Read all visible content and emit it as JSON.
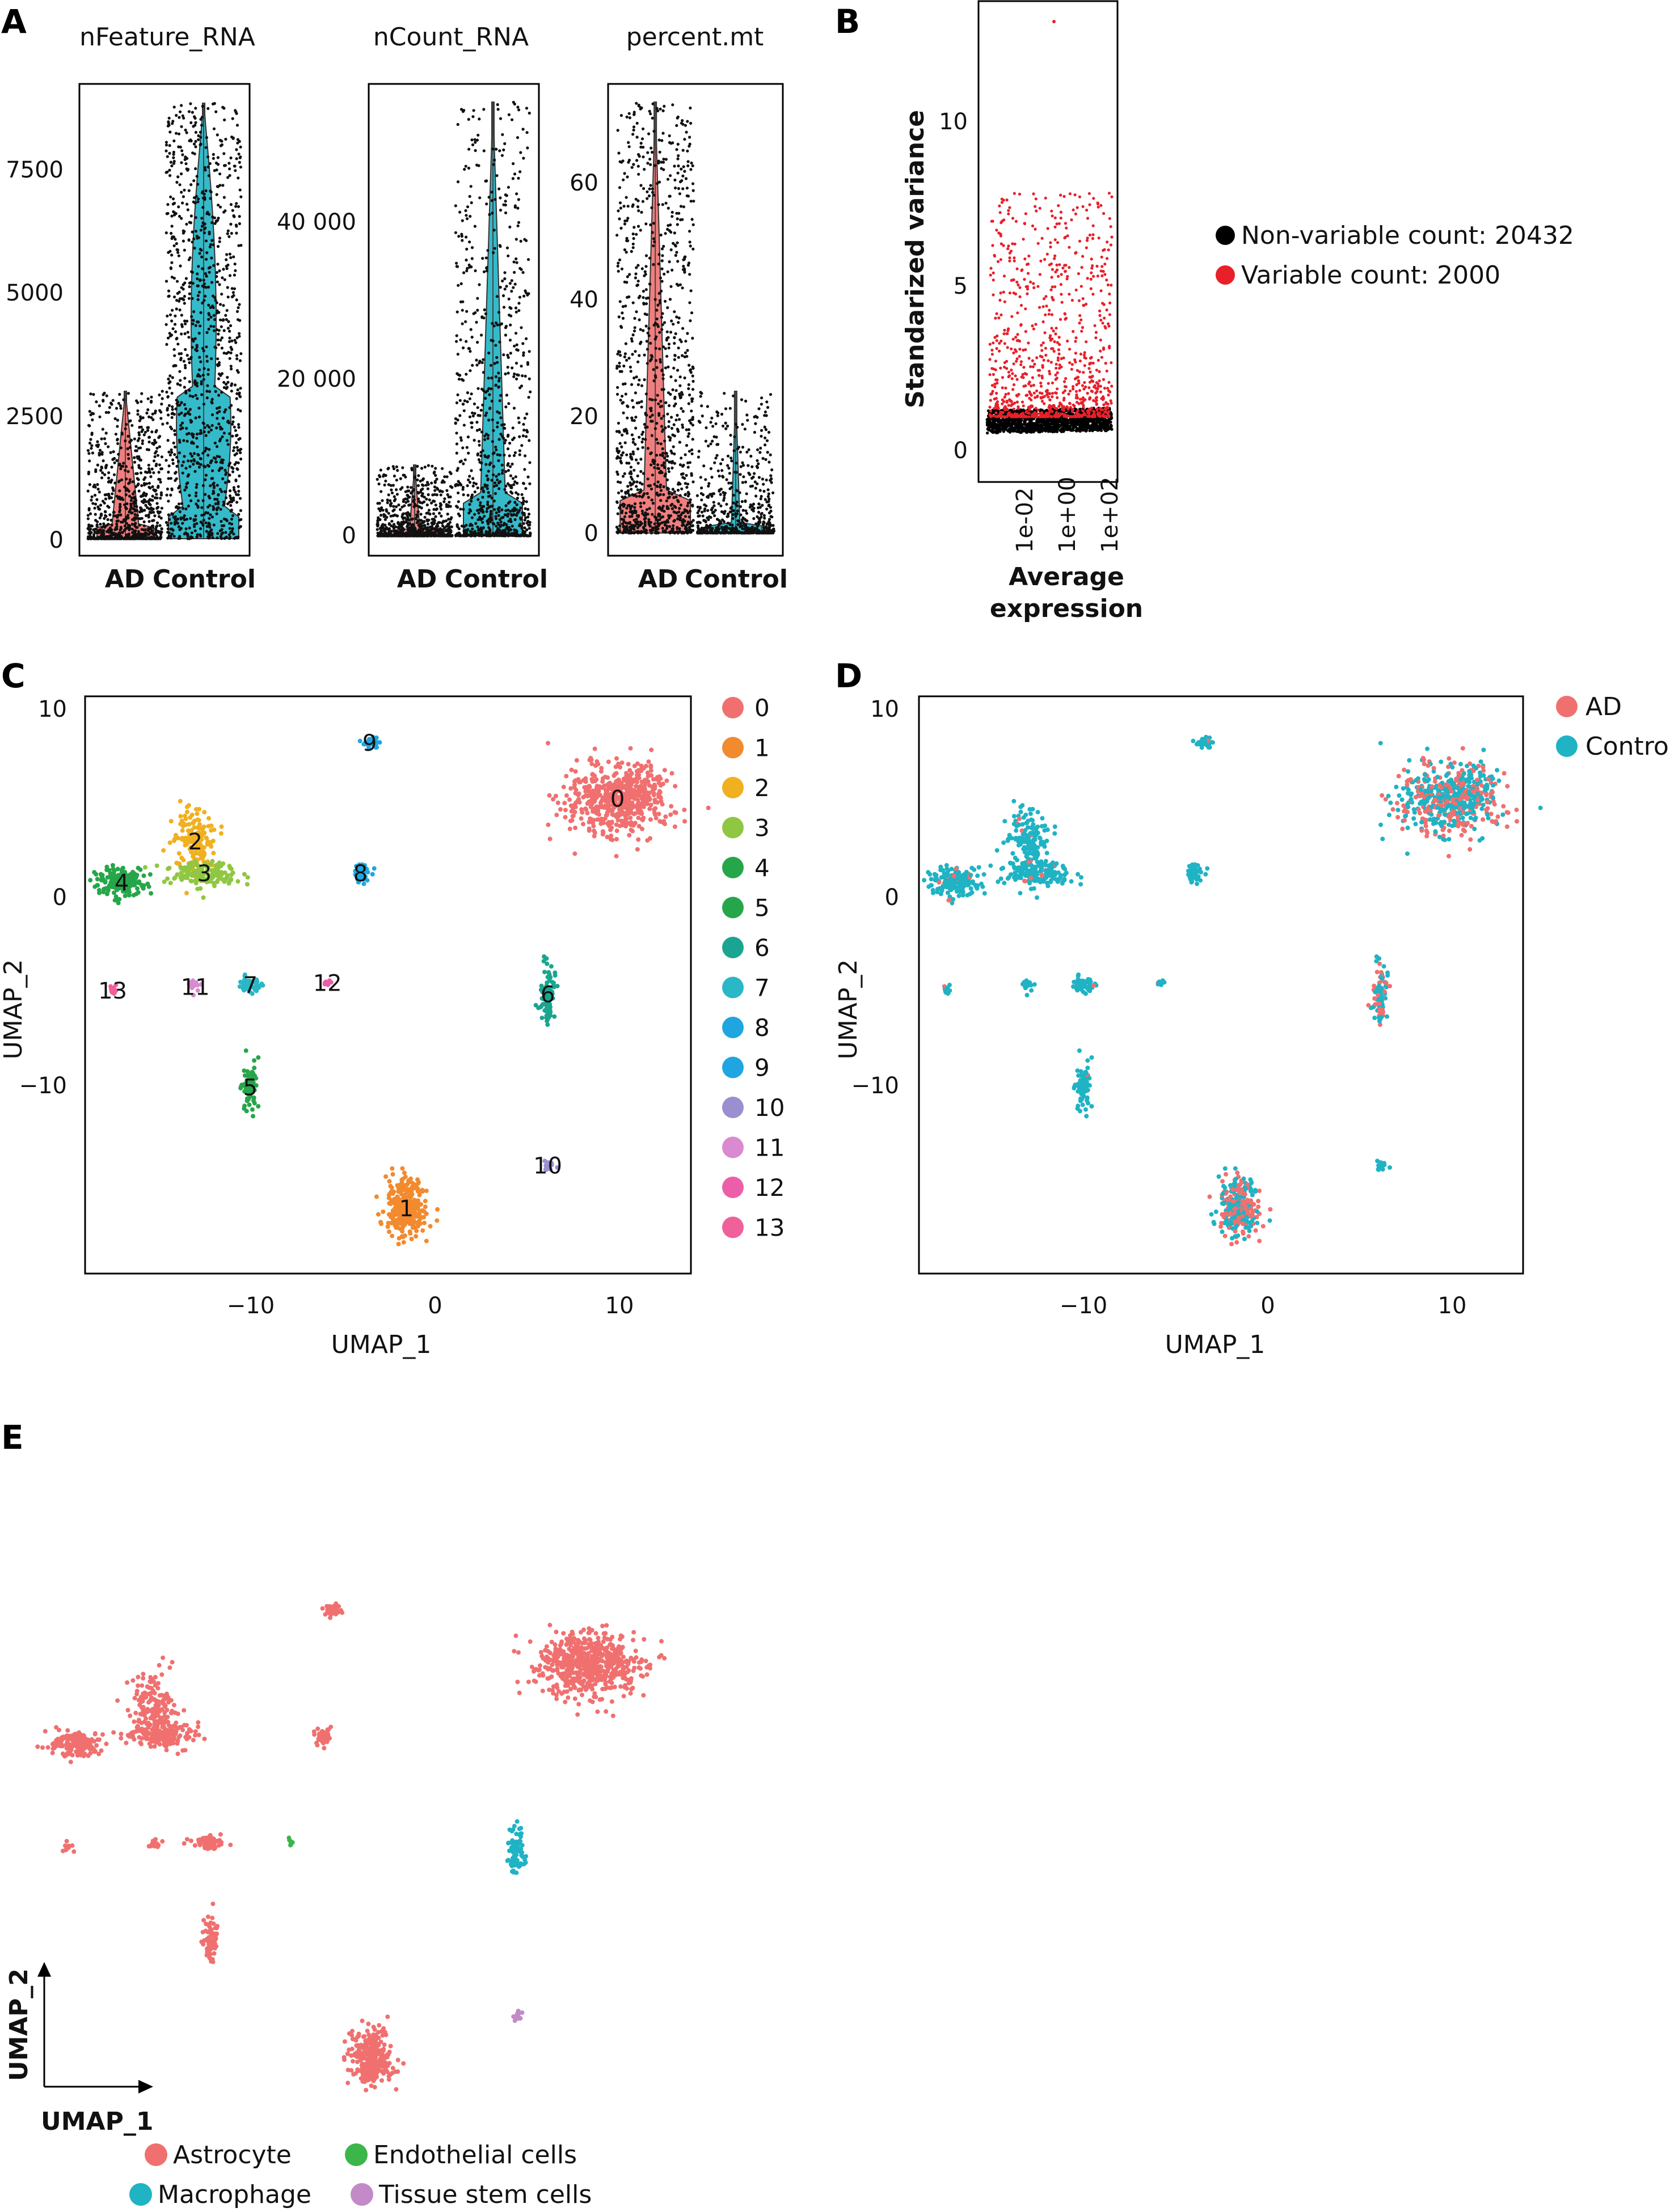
{
  "panels": {
    "a": {
      "label": "A",
      "violins": [
        {
          "title": "nFeature_RNA",
          "yticks": [
            "7500",
            "5000",
            "2500",
            "0"
          ],
          "groups": [
            "AD",
            "Control"
          ]
        },
        {
          "title": "nCount_RNA",
          "yticks": [
            "40 000",
            "20 000",
            "0"
          ],
          "groups": [
            "AD",
            "Control"
          ]
        },
        {
          "title": "percent.mt",
          "yticks": [
            "60",
            "40",
            "20",
            "0"
          ],
          "groups": [
            "AD",
            "Control"
          ]
        }
      ]
    },
    "b": {
      "label": "B",
      "ylabel": "Standarized variance",
      "yticks": [
        "10",
        "5",
        "0"
      ],
      "xticks": [
        "1e-02",
        "1e+00",
        "1e+02"
      ],
      "xlabel_line1": "Average",
      "xlabel_line2": "expression",
      "legend": [
        {
          "text": "Non-variable count: 20432",
          "color": "#000000"
        },
        {
          "text": "Variable count: 2000",
          "color": "#e8202a"
        }
      ]
    },
    "c": {
      "label": "C",
      "xlabel": "UMAP_1",
      "ylabel": "UMAP_2",
      "xticks": [
        "−10",
        "0",
        "10"
      ],
      "yticks": [
        "10",
        "0",
        "−10"
      ],
      "legend": [
        "0",
        "1",
        "2",
        "3",
        "4",
        "5",
        "6",
        "7",
        "8",
        "9",
        "10",
        "11",
        "12",
        "13"
      ]
    },
    "d": {
      "label": "D",
      "xlabel": "UMAP_1",
      "ylabel": "UMAP_2",
      "xticks": [
        "−10",
        "0",
        "10"
      ],
      "yticks": [
        "10",
        "0",
        "−10"
      ],
      "legend": [
        {
          "text": "AD",
          "color": "#f07070"
        },
        {
          "text": "Control",
          "color": "#1fb3c4"
        }
      ]
    },
    "e": {
      "label": "E",
      "xlabel": "UMAP_1",
      "ylabel": "UMAP_2",
      "legend": [
        {
          "text": "Astrocyte",
          "color": "#f07070"
        },
        {
          "text": "Endothelial cells",
          "color": "#3cb54a"
        },
        {
          "text": "Macrophage",
          "color": "#1fb3c4"
        },
        {
          "text": "Tissue stem cells",
          "color": "#c28bc7"
        }
      ]
    }
  },
  "chart_data": [
    {
      "type": "scatter",
      "panel": "A",
      "subtype": "violin",
      "series": [
        {
          "name": "nFeature_RNA",
          "categories": [
            "AD",
            "Control"
          ],
          "median": [
            400,
            1500
          ],
          "max": [
            3800,
            8800
          ]
        },
        {
          "name": "nCount_RNA",
          "categories": [
            "AD",
            "Control"
          ],
          "median": [
            500,
            2500
          ],
          "max": [
            9000,
            55000
          ]
        },
        {
          "name": "percent.mt",
          "categories": [
            "AD",
            "Control"
          ],
          "median": [
            5,
            2
          ],
          "max": [
            75,
            25
          ]
        }
      ]
    },
    {
      "type": "scatter",
      "panel": "B",
      "xscale": "log",
      "xlim": [
        0.0001,
        1000
      ],
      "ylim": [
        -0.5,
        13
      ],
      "series": [
        {
          "name": "Non-variable count: 20432",
          "color": "#000000",
          "y_range": [
            0.3,
            1.3
          ]
        },
        {
          "name": "Variable count: 2000",
          "color": "#e8202a",
          "y_range": [
            1.0,
            13
          ]
        }
      ]
    },
    {
      "type": "scatter",
      "panel": "C",
      "xlim": [
        -19,
        14
      ],
      "ylim": [
        -20,
        11
      ],
      "clusters": [
        {
          "id": "0",
          "x": 10,
          "y": 5.5,
          "sx": 2.2,
          "sy": 1.5,
          "n": 600,
          "color": "#f07070"
        },
        {
          "id": "1",
          "x": -1.5,
          "y": -16.5,
          "sx": 0.9,
          "sy": 1.3,
          "n": 300,
          "color": "#f28a2e"
        },
        {
          "id": "2",
          "x": -13,
          "y": 3.2,
          "sx": 0.9,
          "sy": 1.5,
          "n": 160,
          "color": "#f0b020"
        },
        {
          "id": "3",
          "x": -12.5,
          "y": 1.5,
          "sx": 1.6,
          "sy": 0.6,
          "n": 160,
          "color": "#8fc742"
        },
        {
          "id": "4",
          "x": -17,
          "y": 1,
          "sx": 1.1,
          "sy": 0.6,
          "n": 180,
          "color": "#26a64a"
        },
        {
          "id": "5",
          "x": -10,
          "y": -10,
          "sx": 0.35,
          "sy": 1.0,
          "n": 80,
          "color": "#26a64a"
        },
        {
          "id": "6",
          "x": 6.2,
          "y": -5,
          "sx": 0.35,
          "sy": 1.2,
          "n": 90,
          "color": "#1aa590"
        },
        {
          "id": "7",
          "x": -10,
          "y": -4.5,
          "sx": 0.6,
          "sy": 0.35,
          "n": 60,
          "color": "#2ab7c6"
        },
        {
          "id": "8",
          "x": -4,
          "y": 1.5,
          "sx": 0.4,
          "sy": 0.35,
          "n": 50,
          "color": "#1fa6e0"
        },
        {
          "id": "9",
          "x": -3.5,
          "y": 8.5,
          "sx": 0.4,
          "sy": 0.25,
          "n": 40,
          "color": "#1fa6e0"
        },
        {
          "id": "10",
          "x": 6.2,
          "y": -14.2,
          "sx": 0.25,
          "sy": 0.2,
          "n": 14,
          "color": "#9b8fcf"
        },
        {
          "id": "11",
          "x": -13,
          "y": -4.6,
          "sx": 0.35,
          "sy": 0.2,
          "n": 16,
          "color": "#d98ad0"
        },
        {
          "id": "12",
          "x": -5.8,
          "y": -4.4,
          "sx": 0.2,
          "sy": 0.2,
          "n": 8,
          "color": "#ec5fa8"
        },
        {
          "id": "13",
          "x": -17.5,
          "y": -4.8,
          "sx": 0.2,
          "sy": 0.3,
          "n": 10,
          "color": "#f0609a"
        }
      ]
    },
    {
      "type": "scatter",
      "panel": "D",
      "xlim": [
        -19,
        14
      ],
      "ylim": [
        -20,
        11
      ],
      "series": [
        {
          "name": "AD",
          "color": "#f07070"
        },
        {
          "name": "Control",
          "color": "#1fb3c4"
        }
      ]
    },
    {
      "type": "scatter",
      "panel": "E",
      "series": [
        {
          "name": "Astrocyte",
          "color": "#f07070"
        },
        {
          "name": "Endothelial cells",
          "color": "#3cb54a"
        },
        {
          "name": "Macrophage",
          "color": "#1fb3c4"
        },
        {
          "name": "Tissue stem cells",
          "color": "#c28bc7"
        }
      ]
    }
  ]
}
